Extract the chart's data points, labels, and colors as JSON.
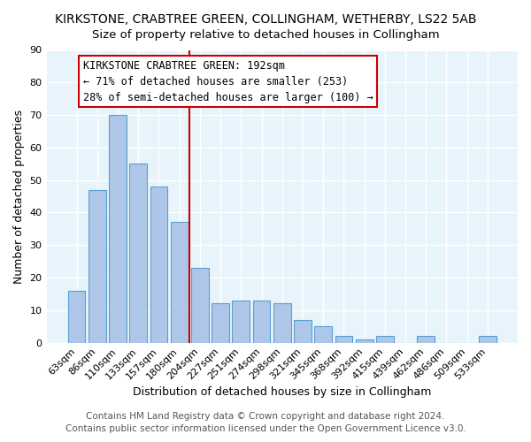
{
  "title": "KIRKSTONE, CRABTREE GREEN, COLLINGHAM, WETHERBY, LS22 5AB",
  "subtitle": "Size of property relative to detached houses in Collingham",
  "xlabel": "Distribution of detached houses by size in Collingham",
  "ylabel": "Number of detached properties",
  "bar_color": "#aec6e8",
  "bar_edge_color": "#5a9fd4",
  "categories": [
    "63sqm",
    "86sqm",
    "110sqm",
    "133sqm",
    "157sqm",
    "180sqm",
    "204sqm",
    "227sqm",
    "251sqm",
    "274sqm",
    "298sqm",
    "321sqm",
    "345sqm",
    "368sqm",
    "392sqm",
    "415sqm",
    "439sqm",
    "462sqm",
    "486sqm",
    "509sqm",
    "533sqm"
  ],
  "values": [
    16,
    47,
    70,
    55,
    48,
    37,
    23,
    12,
    13,
    13,
    12,
    7,
    5,
    2,
    1,
    2,
    0,
    2,
    0,
    0,
    2
  ],
  "ylim": [
    0,
    90
  ],
  "yticks": [
    0,
    10,
    20,
    30,
    40,
    50,
    60,
    70,
    80,
    90
  ],
  "annotation_title": "KIRKSTONE CRABTREE GREEN: 192sqm",
  "annotation_line1": "← 71% of detached houses are smaller (253)",
  "annotation_line2": "28% of semi-detached houses are larger (100) →",
  "vline_x_index": 5.5,
  "footer1": "Contains HM Land Registry data © Crown copyright and database right 2024.",
  "footer2": "Contains public sector information licensed under the Open Government Licence v3.0.",
  "figure_bg_color": "#ffffff",
  "plot_bg_color": "#e8f4fb",
  "grid_color": "#ffffff",
  "vline_color": "#cc0000",
  "title_fontsize": 10,
  "subtitle_fontsize": 9.5,
  "axis_label_fontsize": 9,
  "tick_fontsize": 8,
  "annotation_fontsize": 8.5,
  "footer_fontsize": 7.5
}
